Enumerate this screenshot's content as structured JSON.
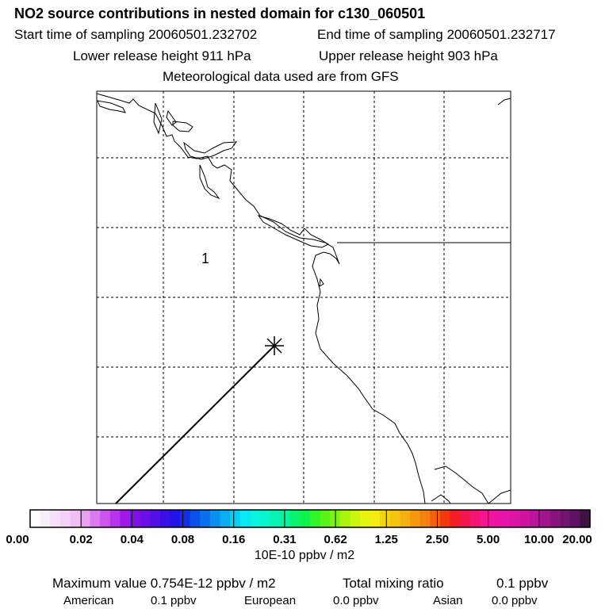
{
  "title": "NO2 source contributions in nested domain for c130_060501",
  "header": {
    "start_label": "Start time of sampling 20060501.232702",
    "end_label": "End time of sampling 20060501.232717",
    "lower_label": "Lower release height  911 hPa",
    "upper_label": "Upper release height  903 hPa",
    "met_label": "Meteorological data used are from GFS"
  },
  "map": {
    "region_label": "1"
  },
  "colorbar": {
    "labels": [
      "0.00",
      "0.02",
      "0.04",
      "0.08",
      "0.16",
      "0.31",
      "0.62",
      "1.25",
      "2.50",
      "5.00",
      "10.00",
      "20.00"
    ],
    "colors": [
      "#ffffff",
      "#fbeefc",
      "#f8dff9",
      "#f4cff7",
      "#f0bff4",
      "#e99ff2",
      "#dc78f0",
      "#cc55ee",
      "#b833ec",
      "#9f18ea",
      "#8010e8",
      "#6a10e8",
      "#5010e8",
      "#3a10e8",
      "#2014e8",
      "#1030e8",
      "#0a50ea",
      "#0870ec",
      "#0890ee",
      "#08aef0",
      "#08cef2",
      "#08eaf0",
      "#08f4e0",
      "#08f4cc",
      "#08f4b4",
      "#08f49c",
      "#08f46c",
      "#10f448",
      "#30f428",
      "#58f418",
      "#80f410",
      "#a8f410",
      "#c8f410",
      "#e4f410",
      "#f4ec10",
      "#f4d410",
      "#f4c410",
      "#f4b010",
      "#f49810",
      "#f48010",
      "#f46010",
      "#f43810",
      "#f41c24",
      "#f41450",
      "#f41474",
      "#f41490",
      "#f014a0",
      "#e814a8",
      "#dc14a8",
      "#cc14a0",
      "#ba1498",
      "#a0148c",
      "#881480",
      "#701470",
      "#5a1460",
      "#401440"
    ],
    "units": "10E-10 ppbv / m2"
  },
  "summary": {
    "max_label": "Maximum value  0.754E-12 ppbv / m2",
    "total_label": "Total mixing ratio",
    "total_value": "0.1 ppbv",
    "american_label": "American",
    "american_value": "0.1 ppbv",
    "european_label": "European",
    "european_value": "0.0 ppbv",
    "asian_label": "Asian",
    "asian_value": "0.0 ppbv"
  }
}
